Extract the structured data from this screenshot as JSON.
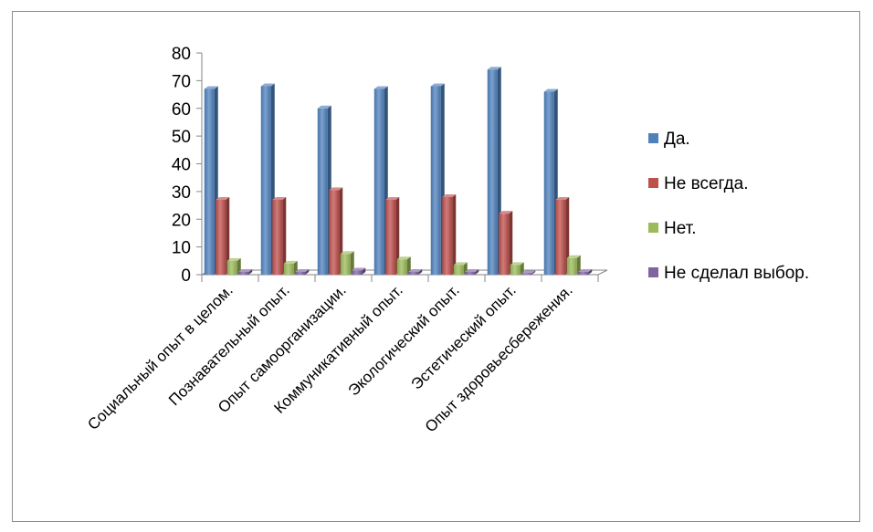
{
  "chart_data": {
    "type": "bar",
    "title": "",
    "xlabel": "",
    "ylabel": "",
    "ylim": [
      0,
      80
    ],
    "yticks": [
      "0",
      "10",
      "20",
      "30",
      "40",
      "50",
      "60",
      "70",
      "80"
    ],
    "categories": [
      "Социальный опыт в целом.",
      "Познавательный опыт.",
      "Опыт самоорганизации.",
      "Коммуникативный опыт.",
      "Экологический опыт.",
      "Эстетический опыт.",
      "Опыт здоровьесбережения."
    ],
    "series": [
      {
        "name": "Да.",
        "color": "#4f81bd",
        "values": [
          67,
          68,
          60,
          67,
          68,
          74,
          66
        ]
      },
      {
        "name": "Не всегда.",
        "color": "#c0504d",
        "values": [
          27,
          27,
          30.5,
          27,
          28,
          22,
          27
        ]
      },
      {
        "name": "Нет.",
        "color": "#9bbb59",
        "values": [
          5,
          4,
          7.5,
          5.5,
          3.5,
          3.5,
          6
        ]
      },
      {
        "name": "Не сделал выбор.",
        "color": "#8064a2",
        "values": [
          1,
          1,
          1.5,
          1,
          1,
          0.5,
          1
        ]
      }
    ],
    "legend_position": "right",
    "grid": false,
    "style": "3d-clustered-column"
  }
}
